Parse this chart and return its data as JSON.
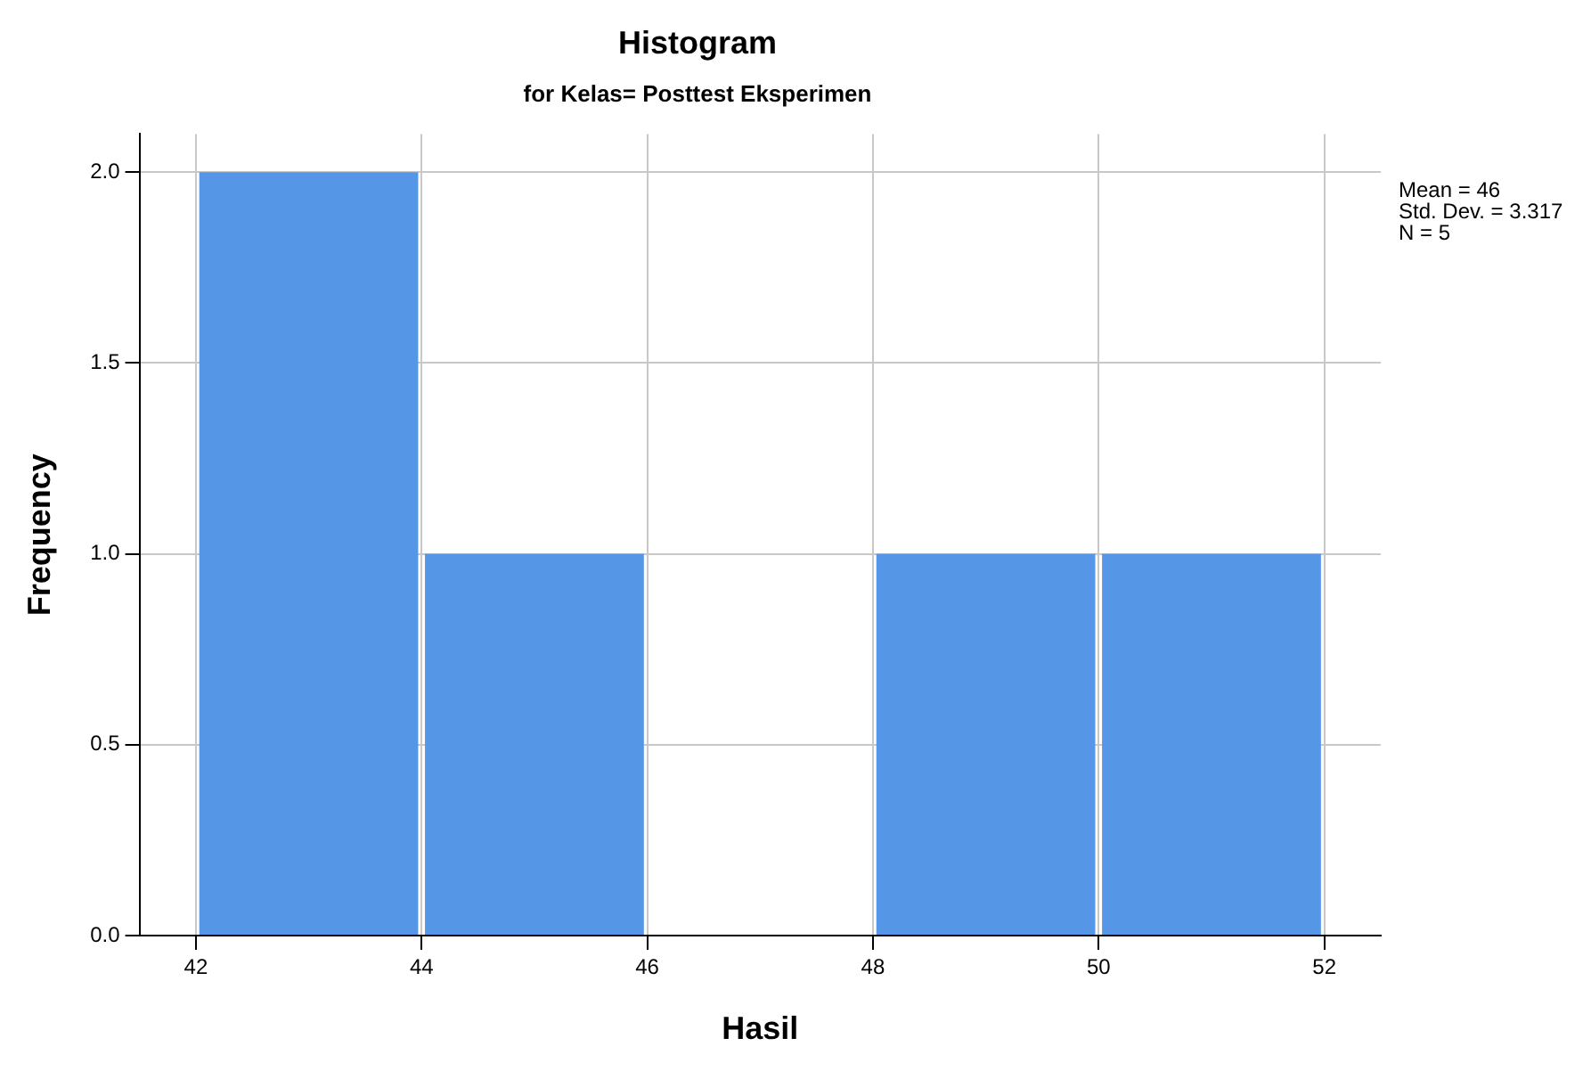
{
  "chart_data": {
    "type": "histogram",
    "title": "Histogram",
    "subtitle": "for Kelas= Posttest Eksperimen",
    "xlabel": "Hasil",
    "ylabel": "Frequency",
    "bins": [
      42,
      44,
      46,
      48,
      50,
      52
    ],
    "values": [
      2,
      1,
      0,
      1,
      1
    ],
    "color": "#5596e6",
    "xlim": [
      41.5,
      52.5
    ],
    "xticks": [
      42,
      44,
      46,
      48,
      50,
      52
    ],
    "ylim": [
      0,
      2.1
    ],
    "yticks": [
      {
        "value": 0,
        "label": "0.0"
      },
      {
        "value": 0.5,
        "label": "0.5"
      },
      {
        "value": 1,
        "label": "1.0"
      },
      {
        "value": 1.5,
        "label": "1.5"
      },
      {
        "value": 2,
        "label": "2.0"
      }
    ],
    "grid": true,
    "annotations": [
      "Mean = 46",
      "Std. Dev. = 3.317",
      "N = 5"
    ]
  }
}
